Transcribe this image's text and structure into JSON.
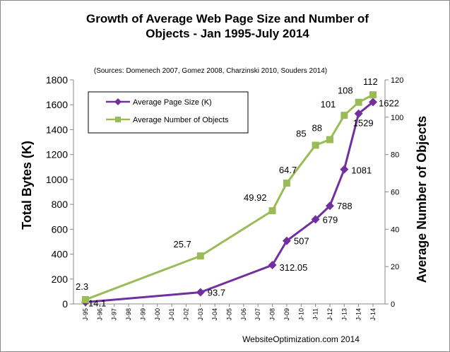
{
  "chart_data": {
    "type": "line",
    "title_line1": "Growth of Average Web Page Size and Number of",
    "title_line2": "Objects - Jan 1995-July 2014",
    "subtitle": "(Sources: Domenech 2007, Gomez 2008, Charzinski 2010, Souders 2014)",
    "ylabel": "Total Bytes (K)",
    "y2label": "Average Number of Objects",
    "footer": "WebsiteOptimization.com 2014",
    "ylim": [
      0,
      1800
    ],
    "y2lim": [
      0,
      120
    ],
    "yticks": [
      "0",
      "200",
      "400",
      "600",
      "800",
      "1000",
      "1200",
      "1400",
      "1600",
      "1800"
    ],
    "y2ticks": [
      "0",
      "20",
      "40",
      "60",
      "80",
      "100",
      "120"
    ],
    "categories": [
      "J-95",
      "J-96",
      "J-97",
      "J-98",
      "J-99",
      "J-00",
      "J-01",
      "J-02",
      "J-03",
      "J-04",
      "J-05",
      "J-06",
      "J-07",
      "J-08",
      "J-09",
      "J-10",
      "J-11",
      "J-12",
      "J-13",
      "J-14",
      "J-14"
    ],
    "legend_position": "top-left",
    "grid": false,
    "series": [
      {
        "name": "Average Page Size (K)",
        "axis": "left",
        "color": "#7030a0",
        "marker": "diamond",
        "points": [
          {
            "x": 0,
            "value": 14.1,
            "label": "14.1"
          },
          {
            "x": 8,
            "value": 93.7,
            "label": "93.7"
          },
          {
            "x": 13,
            "value": 312.05,
            "label": "312.05"
          },
          {
            "x": 14,
            "value": 507,
            "label": "507"
          },
          {
            "x": 16,
            "value": 679,
            "label": "679"
          },
          {
            "x": 17,
            "value": 788,
            "label": "788"
          },
          {
            "x": 18,
            "value": 1081,
            "label": "1081"
          },
          {
            "x": 19,
            "value": 1529,
            "label": "1529"
          },
          {
            "x": 20,
            "value": 1622,
            "label": "1622"
          }
        ]
      },
      {
        "name": "Average Number of Objects",
        "axis": "right",
        "color": "#9bbb59",
        "marker": "square",
        "points": [
          {
            "x": 0,
            "value": 2.3,
            "label": "2.3"
          },
          {
            "x": 8,
            "value": 25.7,
            "label": "25.7"
          },
          {
            "x": 13,
            "value": 49.92,
            "label": "49.92"
          },
          {
            "x": 14,
            "value": 64.7,
            "label": "64.7"
          },
          {
            "x": 16,
            "value": 85,
            "label": "85"
          },
          {
            "x": 17,
            "value": 88,
            "label": "88"
          },
          {
            "x": 18,
            "value": 101,
            "label": "101"
          },
          {
            "x": 19,
            "value": 108,
            "label": "108"
          },
          {
            "x": 20,
            "value": 112,
            "label": "112"
          }
        ]
      }
    ]
  }
}
